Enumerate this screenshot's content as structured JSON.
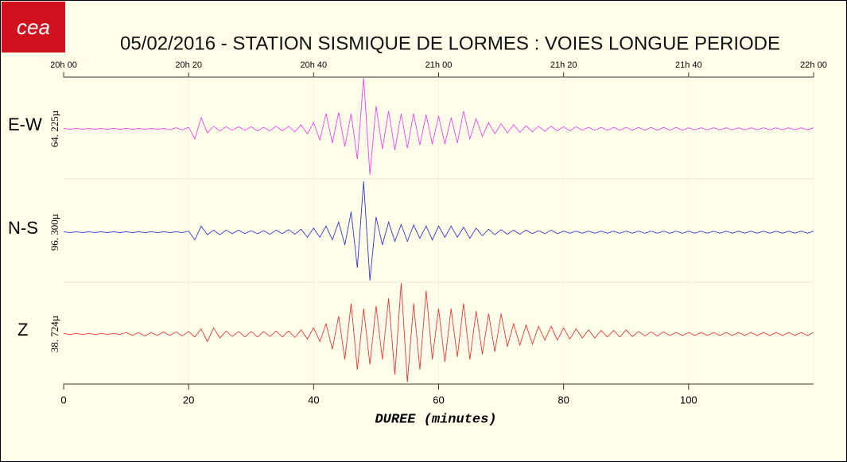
{
  "chart_data": {
    "type": "line",
    "title": "05/02/2016  -  STATION SISMIQUE DE LORMES : VOIES LONGUE PERIODE",
    "logo": "cea",
    "xlabel": "DUREE (minutes)",
    "xlim": [
      0,
      120
    ],
    "xticks": [
      0,
      20,
      40,
      60,
      80,
      100
    ],
    "x2ticks": [
      {
        "value": 0,
        "label": "20h 00"
      },
      {
        "value": 20,
        "label": "20h 20"
      },
      {
        "value": 40,
        "label": "20h 40"
      },
      {
        "value": 60,
        "label": "21h 00"
      },
      {
        "value": 80,
        "label": "21h 20"
      },
      {
        "value": 100,
        "label": "21h 40"
      },
      {
        "value": 120,
        "label": "22h 00"
      }
    ],
    "grid": true,
    "x": [
      0,
      1,
      2,
      3,
      4,
      5,
      6,
      7,
      8,
      9,
      10,
      11,
      12,
      13,
      14,
      15,
      16,
      17,
      18,
      19,
      20,
      21,
      22,
      23,
      24,
      25,
      26,
      27,
      28,
      29,
      30,
      31,
      32,
      33,
      34,
      35,
      36,
      37,
      38,
      39,
      40,
      41,
      42,
      43,
      44,
      45,
      46,
      47,
      48,
      49,
      50,
      51,
      52,
      53,
      54,
      55,
      56,
      57,
      58,
      59,
      60,
      61,
      62,
      63,
      64,
      65,
      66,
      67,
      68,
      69,
      70,
      71,
      72,
      73,
      74,
      75,
      76,
      77,
      78,
      79,
      80,
      81,
      82,
      83,
      84,
      85,
      86,
      87,
      88,
      89,
      90,
      91,
      92,
      93,
      94,
      95,
      96,
      97,
      98,
      99,
      100,
      101,
      102,
      103,
      104,
      105,
      106,
      107,
      108,
      109,
      110,
      111,
      112,
      113,
      114,
      115,
      116,
      117,
      118,
      119,
      120
    ],
    "series": [
      {
        "name": "E-W",
        "scale_label": "64. 225µ",
        "color": "#ee44ee",
        "ylim": [
          -1,
          1
        ],
        "values": [
          0.01,
          -0.01,
          0.01,
          -0.01,
          0.01,
          -0.01,
          0.01,
          -0.01,
          0.01,
          -0.01,
          0.01,
          -0.01,
          0.01,
          -0.01,
          0.01,
          -0.01,
          0.01,
          -0.02,
          0.02,
          -0.02,
          0.03,
          -0.2,
          0.22,
          -0.08,
          0.05,
          -0.04,
          0.04,
          -0.03,
          0.04,
          -0.03,
          0.04,
          -0.04,
          0.03,
          -0.04,
          0.05,
          -0.04,
          0.05,
          -0.06,
          0.08,
          -0.1,
          0.12,
          -0.22,
          0.3,
          -0.28,
          0.32,
          -0.35,
          0.3,
          -0.6,
          1.0,
          -0.9,
          0.45,
          -0.4,
          0.35,
          -0.42,
          0.3,
          -0.38,
          0.3,
          -0.32,
          0.28,
          -0.3,
          0.25,
          -0.3,
          0.22,
          -0.28,
          0.35,
          -0.2,
          0.2,
          -0.15,
          0.12,
          -0.1,
          0.1,
          -0.08,
          0.08,
          -0.07,
          0.06,
          -0.06,
          0.05,
          -0.05,
          0.05,
          -0.04,
          0.04,
          -0.04,
          0.04,
          -0.03,
          0.03,
          -0.03,
          0.03,
          -0.03,
          0.03,
          -0.03,
          0.03,
          -0.03,
          0.03,
          -0.03,
          0.03,
          -0.03,
          0.03,
          -0.03,
          0.03,
          -0.03,
          0.02,
          -0.02,
          0.02,
          -0.02,
          0.02,
          -0.02,
          0.02,
          -0.02,
          0.02,
          -0.02,
          0.02,
          -0.02,
          0.02,
          -0.02,
          0.02,
          -0.02,
          0.02,
          -0.02,
          0.02,
          -0.02,
          0.02
        ]
      },
      {
        "name": "N-S",
        "scale_label": "96. 300µ",
        "color": "#3535d8",
        "ylim": [
          -1,
          1
        ],
        "values": [
          0.01,
          -0.01,
          0.01,
          -0.01,
          0.01,
          -0.01,
          0.01,
          -0.01,
          0.01,
          -0.01,
          0.01,
          -0.01,
          0.01,
          -0.01,
          0.01,
          -0.01,
          0.01,
          -0.01,
          0.01,
          -0.01,
          0.02,
          -0.15,
          0.12,
          -0.05,
          0.04,
          -0.05,
          0.04,
          -0.03,
          0.04,
          -0.03,
          0.03,
          -0.03,
          0.03,
          -0.04,
          0.04,
          -0.03,
          0.05,
          -0.04,
          0.06,
          -0.1,
          0.08,
          -0.1,
          0.12,
          -0.15,
          0.2,
          -0.25,
          0.4,
          -0.7,
          1.0,
          -0.95,
          0.3,
          -0.25,
          0.2,
          -0.18,
          0.15,
          -0.18,
          0.14,
          -0.12,
          0.12,
          -0.15,
          0.12,
          -0.1,
          0.12,
          -0.1,
          0.1,
          -0.12,
          0.08,
          -0.07,
          0.06,
          -0.05,
          0.05,
          -0.04,
          0.04,
          -0.04,
          0.04,
          -0.03,
          0.03,
          -0.03,
          0.04,
          -0.03,
          0.02,
          -0.02,
          0.02,
          -0.02,
          0.02,
          -0.02,
          0.02,
          -0.02,
          0.02,
          -0.02,
          0.02,
          -0.02,
          0.02,
          -0.02,
          0.02,
          -0.02,
          0.02,
          -0.02,
          0.02,
          -0.02,
          0.02,
          -0.02,
          0.02,
          -0.02,
          0.02,
          -0.02,
          0.02,
          -0.02,
          0.02,
          -0.02,
          0.02,
          -0.02,
          0.02,
          -0.02,
          0.02,
          -0.02,
          0.02,
          -0.02,
          0.02,
          -0.02,
          0.02
        ]
      },
      {
        "name": "Z",
        "scale_label": "38. 724µ",
        "color": "#e83838",
        "ylim": [
          -1,
          1
        ],
        "values": [
          0.01,
          -0.01,
          0.01,
          -0.01,
          0.01,
          -0.01,
          0.01,
          -0.01,
          0.01,
          -0.01,
          0.03,
          -0.03,
          0.03,
          -0.04,
          0.03,
          -0.03,
          0.04,
          -0.03,
          0.04,
          -0.04,
          0.05,
          -0.06,
          0.1,
          -0.15,
          0.12,
          -0.08,
          0.06,
          -0.05,
          0.05,
          -0.06,
          0.05,
          -0.06,
          0.05,
          -0.05,
          0.06,
          -0.06,
          0.06,
          -0.07,
          0.08,
          -0.1,
          0.12,
          -0.15,
          0.2,
          -0.3,
          0.35,
          -0.5,
          0.6,
          -0.7,
          0.5,
          -0.6,
          0.55,
          -0.5,
          0.7,
          -0.8,
          1.0,
          -0.95,
          0.6,
          -0.7,
          0.85,
          -0.5,
          0.5,
          -0.55,
          0.5,
          -0.45,
          0.6,
          -0.5,
          0.45,
          -0.4,
          0.4,
          -0.35,
          0.4,
          -0.25,
          0.2,
          -0.22,
          0.18,
          -0.2,
          0.15,
          -0.12,
          0.15,
          -0.12,
          0.12,
          -0.1,
          0.1,
          -0.08,
          0.08,
          -0.08,
          0.07,
          -0.06,
          0.07,
          -0.06,
          0.08,
          -0.05,
          0.05,
          -0.04,
          0.04,
          -0.04,
          0.04,
          -0.03,
          0.03,
          -0.03,
          0.03,
          -0.03,
          0.03,
          -0.03,
          0.03,
          -0.03,
          0.03,
          -0.03,
          0.03,
          -0.03,
          0.03,
          -0.03,
          0.03,
          -0.03,
          0.03,
          -0.03,
          0.03,
          -0.03,
          0.03,
          -0.03,
          0.03
        ]
      }
    ]
  }
}
